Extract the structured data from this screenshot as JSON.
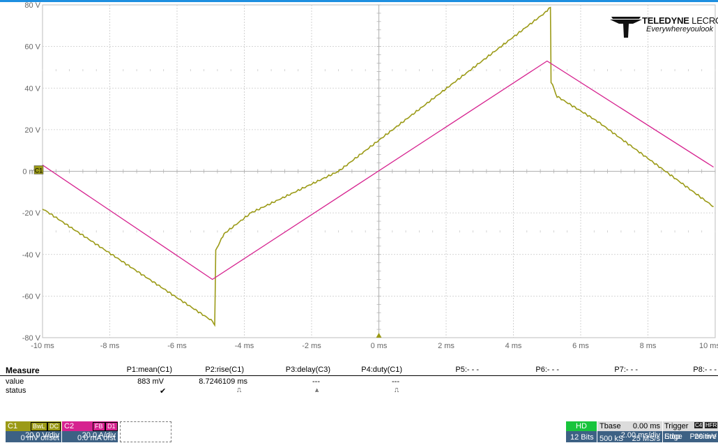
{
  "brand": {
    "name_bold": "TELEDYNE",
    "name_thin": " LECROY",
    "tagline": "Everywhereyoulook"
  },
  "chart_data": {
    "type": "line",
    "x_unit": "ms",
    "xlim": [
      -10,
      10
    ],
    "ylim": [
      -80,
      80
    ],
    "x_ticks": [
      "-10 ms",
      "-8 ms",
      "-6 ms",
      "-4 ms",
      "-2 ms",
      "0 ms",
      "2 ms",
      "4 ms",
      "6 ms",
      "8 ms",
      "10 ms"
    ],
    "y_ticks": [
      "80 V",
      "60 V",
      "40 V",
      "20 V",
      "0 mV",
      "-20 V",
      "-40 V",
      "-60 V",
      "-80 V"
    ],
    "grid": true,
    "channel_marker": "C1",
    "series": [
      {
        "name": "C1",
        "color": "#9b9a16",
        "points": [
          [
            -10,
            -18
          ],
          [
            -4.95,
            -72
          ],
          [
            -4.88,
            -74
          ],
          [
            -4.85,
            -38
          ],
          [
            -4.6,
            -30
          ],
          [
            -3.8,
            -20
          ],
          [
            -1.2,
            0
          ],
          [
            5.0,
            77
          ],
          [
            5.1,
            79
          ],
          [
            5.12,
            43
          ],
          [
            5.3,
            36
          ],
          [
            6.5,
            24
          ],
          [
            9.95,
            -17
          ]
        ]
      },
      {
        "name": "C2",
        "color": "#d6228f",
        "points": [
          [
            -10,
            3
          ],
          [
            -4.95,
            -52
          ],
          [
            5.0,
            53
          ],
          [
            9.95,
            2
          ]
        ]
      }
    ]
  },
  "measure": {
    "header": "Measure",
    "row_value_label": "value",
    "row_status_label": "status",
    "params": [
      {
        "name": "P1:mean(C1)",
        "value": "883 mV",
        "status": "✔"
      },
      {
        "name": "P2:rise(C1)",
        "value": "8.7246109 ms",
        "status": "⎍"
      },
      {
        "name": "P3:delay(C3)",
        "value": "---",
        "status": "⩓"
      },
      {
        "name": "P4:duty(C1)",
        "value": "---",
        "status": "⎍"
      },
      {
        "name": "P5:- - -",
        "value": "",
        "status": ""
      },
      {
        "name": "P6:- - -",
        "value": "",
        "status": ""
      },
      {
        "name": "P7:- - -",
        "value": "",
        "status": ""
      },
      {
        "name": "P8:- - -",
        "value": "",
        "status": ""
      }
    ]
  },
  "channels": {
    "c1": {
      "label": "C1",
      "tags": [
        "BwL",
        "DC"
      ],
      "scale": "20.0 V/div",
      "offset": "0 mV offset",
      "color": "#9b9a16"
    },
    "c2": {
      "label": "C2",
      "tags": [
        "FB",
        "D1"
      ],
      "scale": "20.0 A/div",
      "offset": "0.0 mA ofst",
      "color": "#d6228f"
    }
  },
  "acquisition": {
    "hd": "HD",
    "bits": "12 Bits",
    "tbase_label": "Tbase",
    "tbase_delay": "0.00 ms",
    "timediv": "2.00 ms/div",
    "samples": "500 kS",
    "rate": "25 MS/s",
    "trigger_label": "Trigger",
    "trigger_tag1": "C4",
    "trigger_tag2": "HFR",
    "trigger_mode": "Stop",
    "trigger_type": "Edge",
    "trigger_level": "20 mV",
    "trigger_slope": "Positive"
  }
}
